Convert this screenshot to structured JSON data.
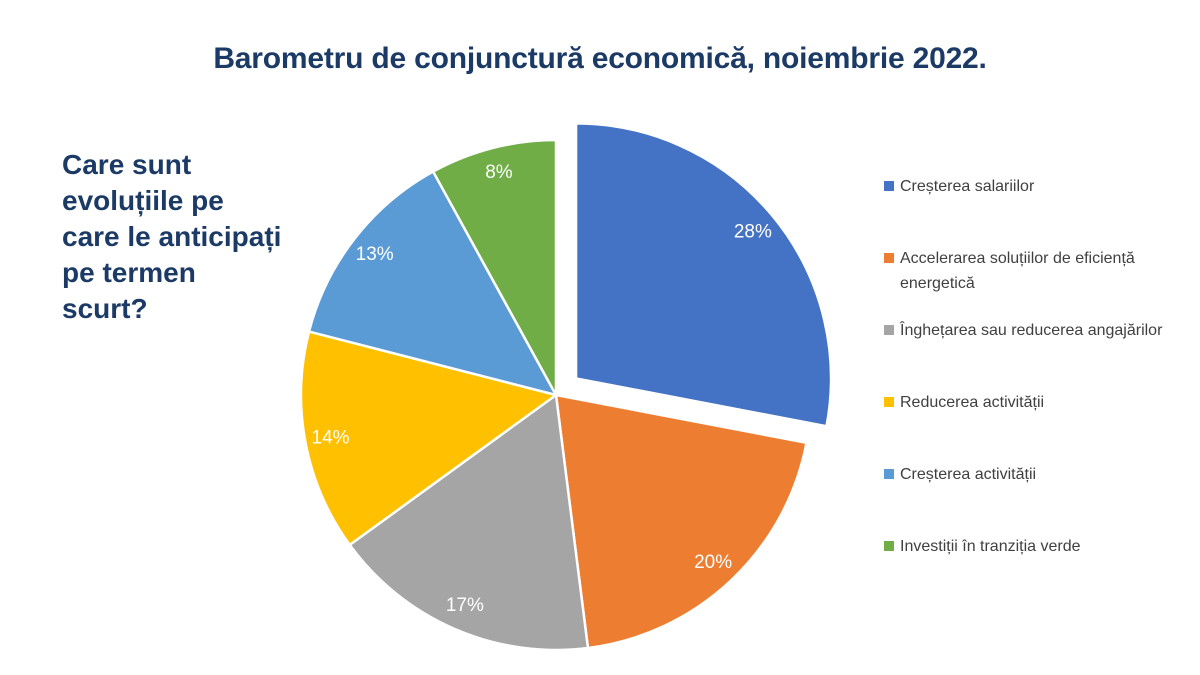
{
  "title": "Barometru de conjunctură economică, noiembrie 2022.",
  "question": "Care sunt evoluțiile pe care le anticipați pe termen scurt?",
  "chart_data": {
    "type": "pie",
    "title": "Barometru de conjunctură economică, noiembrie 2022.",
    "question": "Care sunt evoluțiile pe care le anticipați pe termen scurt?",
    "categories": [
      "Creșterea salariilor",
      "Accelerarea soluțiilor de eficiență energetică",
      "Înghețarea sau reducerea angajărilor",
      "Reducerea activității",
      "Creșterea activității",
      "Investiții în tranziția verde"
    ],
    "values": [
      28,
      20,
      17,
      14,
      13,
      8
    ],
    "slices": [
      {
        "label": "Creșterea salariilor",
        "value": 28,
        "percent_label": "28%",
        "color": "#4472C4",
        "exploded": true
      },
      {
        "label": "Accelerarea soluțiilor de eficiență energetică",
        "value": 20,
        "percent_label": "20%",
        "color": "#ED7D31",
        "exploded": false
      },
      {
        "label": "Înghețarea sau reducerea angajărilor",
        "value": 17,
        "percent_label": "17%",
        "color": "#A5A5A5",
        "exploded": false
      },
      {
        "label": "Reducerea activității",
        "value": 14,
        "percent_label": "14%",
        "color": "#FFC000",
        "exploded": false
      },
      {
        "label": "Creșterea activității",
        "value": 13,
        "percent_label": "13%",
        "color": "#5B9BD5",
        "exploded": false
      },
      {
        "label": "Investiții în tranziția verde",
        "value": 8,
        "percent_label": "8%",
        "color": "#70AD47",
        "exploded": false
      }
    ],
    "start_angle_deg": 0,
    "direction": "clockwise",
    "legend_position": "right",
    "data_label_color": "#FFFFFF",
    "slice_border_color": "#FFFFFF"
  },
  "colors": {
    "title_text": "#1C3A66",
    "question_text": "#1C3A66",
    "legend_text": "#404040",
    "background": "#FFFFFF"
  }
}
